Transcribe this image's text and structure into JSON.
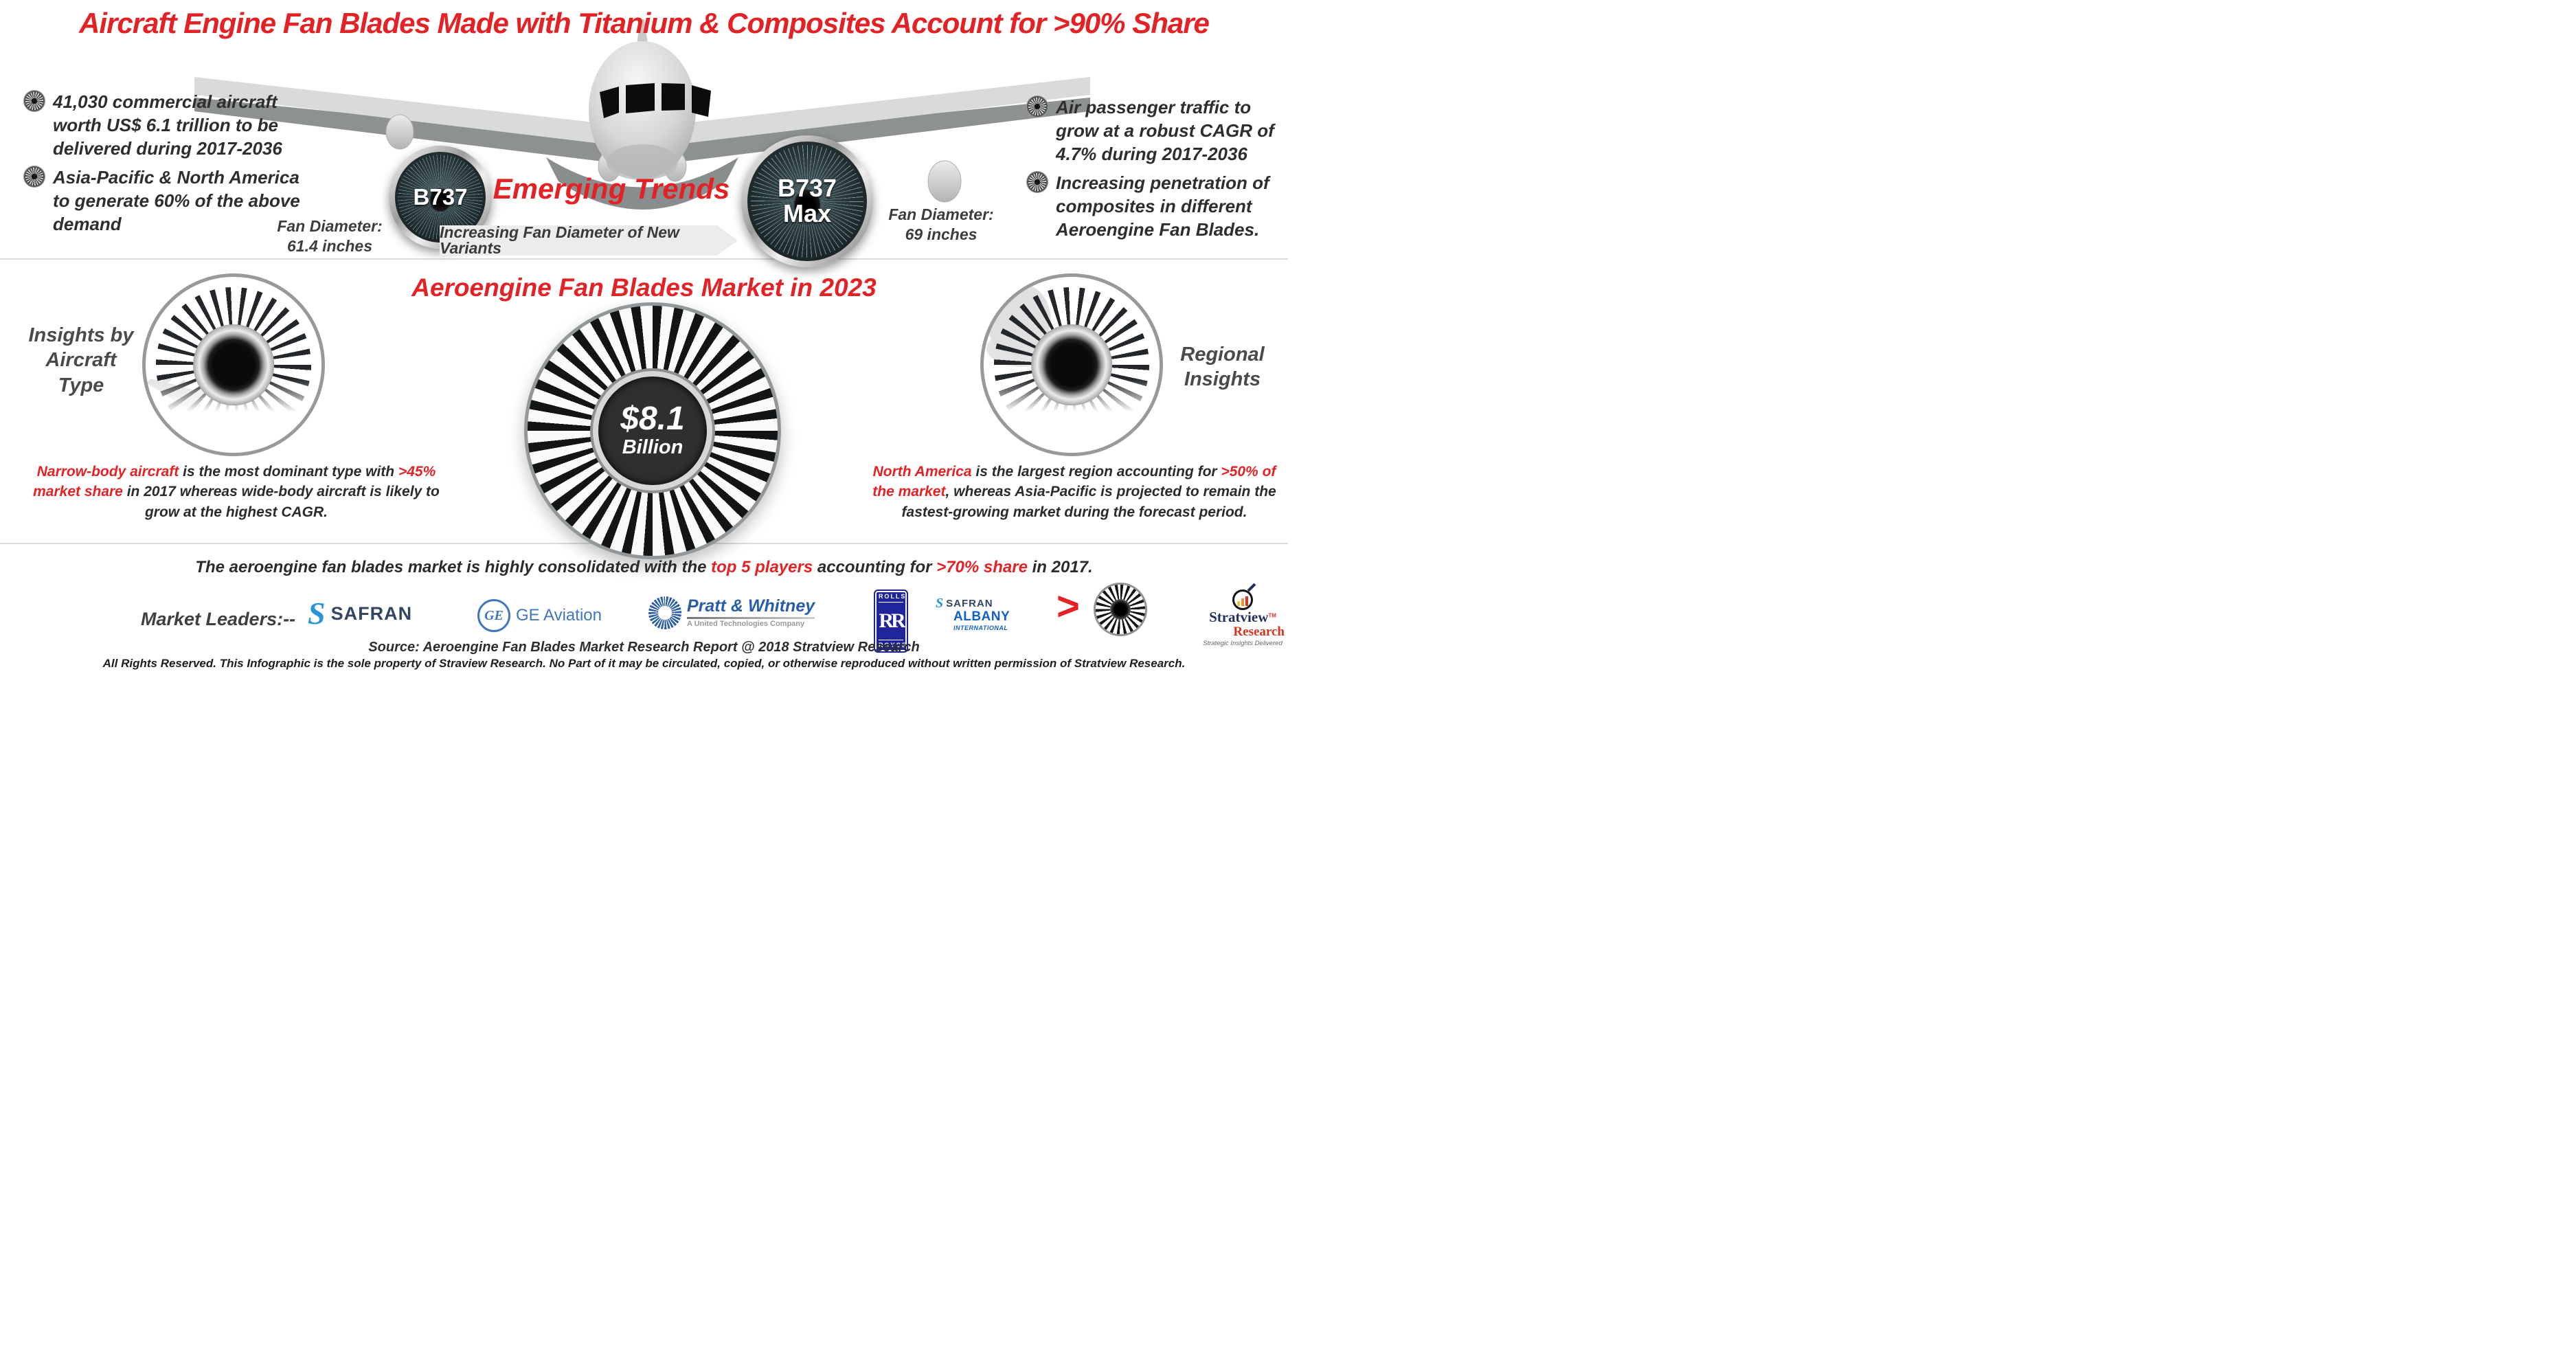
{
  "colors": {
    "accent_red": "#e32226",
    "dark_text": "#2b2b2b",
    "heading_gray": "#4a4a4a",
    "safran_navy": "#344563",
    "safran_blue": "#2a95d8",
    "ge_blue": "#3f76bc",
    "pratt_blue": "#2a5ca8",
    "rolls_blue": "#20259b",
    "albany_blue": "#1160c7",
    "stratview_navy": "#232f5e",
    "stratview_red": "#d9331f"
  },
  "header": {
    "title": "Aircraft Engine Fan Blades Made with Titanium & Composites Account for >90% Share"
  },
  "top": {
    "left_bullets": [
      "41,030 commercial aircraft worth US$ 6.1 trillion to be delivered during 2017-2036",
      "Asia-Pacific & North America to generate 60% of the above demand"
    ],
    "right_bullets": [
      "Air passenger traffic to grow at a robust CAGR of 4.7% during 2017-2036",
      "Increasing penetration of composites in different Aeroengine Fan Blades."
    ],
    "emerging_trends": "Emerging Trends",
    "banner": "Increasing Fan Diameter of New Variants",
    "engine_left": {
      "name": "B737",
      "diameter_label": "Fan Diameter:",
      "diameter_value": "61.4 inches"
    },
    "engine_right": {
      "name_line1": "B737",
      "name_line2": "Max",
      "diameter_label": "Fan Diameter:",
      "diameter_value": "69 inches"
    }
  },
  "middle": {
    "title": "Aeroengine Fan Blades Market in 2023",
    "left_heading_lines": [
      "Insights by",
      "Aircraft",
      "Type"
    ],
    "right_heading_lines": [
      "Regional",
      "Insights"
    ],
    "market_value": "$8.1",
    "market_unit": "Billion",
    "left_note": [
      {
        "text": "Narrow-body aircraft",
        "style": "red"
      },
      {
        "text": " is the most dominant type with ",
        "style": "dark"
      },
      {
        "text": ">45% market share",
        "style": "red"
      },
      {
        "text": " in 2017 whereas wide-body aircraft is likely to grow at the highest CAGR.",
        "style": "dark"
      }
    ],
    "right_note": [
      {
        "text": "North America",
        "style": "red"
      },
      {
        "text": " is the largest region accounting for ",
        "style": "dark"
      },
      {
        "text": ">50% of the market",
        "style": "red"
      },
      {
        "text": ", whereas Asia-Pacific is projected to remain the fastest-growing  market during the forecast period.",
        "style": "dark"
      }
    ]
  },
  "bottom": {
    "consolidation": [
      {
        "text": "The aeroengine fan blades market is highly consolidated with the ",
        "style": "dark"
      },
      {
        "text": "top 5 players",
        "style": "red"
      },
      {
        "text": " accounting for ",
        "style": "dark"
      },
      {
        "text": ">70% share",
        "style": "red"
      },
      {
        "text": " in 2017.",
        "style": "dark"
      }
    ],
    "market_leaders_label": "Market Leaders:--",
    "logos": {
      "safran": {
        "glyph": "S",
        "word": "SAFRAN"
      },
      "ge": {
        "monogram": "GE",
        "word": "GE Aviation"
      },
      "pratt": {
        "word": "Pratt & Whitney",
        "sub": "A United Technologies Company"
      },
      "rolls": {
        "top": "ROLLS",
        "monogram": "RR",
        "bottom": "ROYCE"
      },
      "safran_albany": {
        "glyph": "S",
        "word": "SAFRAN",
        "line2": "ALBANY",
        "line3": "INTERNATIONAL"
      },
      "greater_than": ">"
    },
    "source": "Source: Aeroengine Fan Blades Market Research Report @ 2018 Stratview Research",
    "copyright": "All Rights Reserved. This Infographic is the sole property of Straview Research. No Part of it may be circulated, copied, or otherwise reproduced without written permission of Stratview Research.",
    "stratview": {
      "name": "Stratview",
      "tm": "TM",
      "research": "Research",
      "tagline": "Strategic Insights Delivered"
    }
  }
}
